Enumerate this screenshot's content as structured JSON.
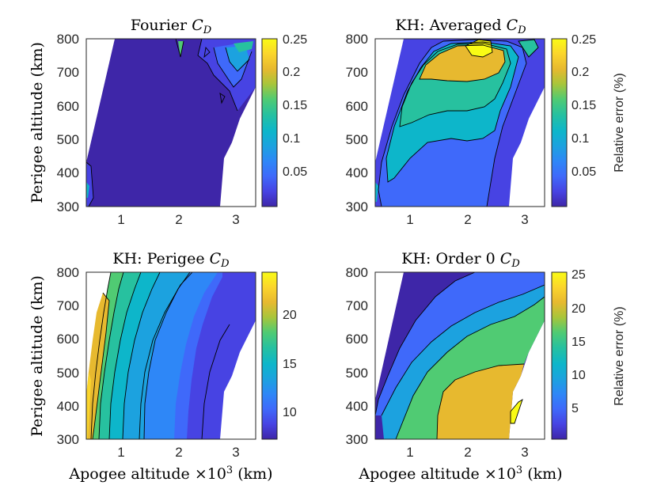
{
  "chart_data": [
    {
      "type": "contour",
      "title": "Fourier",
      "title_symbol": "C",
      "title_subscript": "D",
      "xlabel": "",
      "ylabel": "Perigee altitude (km)",
      "colorbar_label": "",
      "xlim": [
        0.4,
        3.35
      ],
      "ylim": [
        300,
        800
      ],
      "xticks": [
        "1",
        "2",
        "3"
      ],
      "yticks": [
        "300",
        "400",
        "500",
        "600",
        "700",
        "800"
      ],
      "colorbar_range": [
        0,
        0.25
      ],
      "colorbar_ticks": [
        "0.05",
        "0.1",
        "0.15",
        "0.2",
        "0.25"
      ],
      "level_range_shown": [
        0,
        0.25
      ],
      "dominant_value": 0.0
    },
    {
      "type": "contour",
      "title": "KH: Averaged",
      "title_symbol": "C",
      "title_subscript": "D",
      "xlabel": "",
      "ylabel": "",
      "colorbar_label": "Relative error (%)",
      "xlim": [
        0.4,
        3.35
      ],
      "ylim": [
        300,
        800
      ],
      "xticks": [
        "1",
        "2",
        "3"
      ],
      "yticks": [
        "300",
        "400",
        "500",
        "600",
        "700",
        "800"
      ],
      "colorbar_range": [
        0,
        0.25
      ],
      "colorbar_ticks": [
        "0.05",
        "0.1",
        "0.15",
        "0.2",
        "0.25"
      ],
      "level_range_shown": [
        0,
        0.25
      ],
      "peak_value": 0.25
    },
    {
      "type": "contour",
      "title": "KH: Perigee",
      "title_symbol": "C",
      "title_subscript": "D",
      "xlabel": "Apogee altitude ×10",
      "xlabel_exponent": "3",
      "xlabel_unit": " (km)",
      "ylabel": "Perigee altitude (km)",
      "colorbar_label": "",
      "xlim": [
        0.4,
        3.35
      ],
      "ylim": [
        300,
        800
      ],
      "xticks": [
        "1",
        "2",
        "3"
      ],
      "yticks": [
        "300",
        "400",
        "500",
        "600",
        "700",
        "800"
      ],
      "colorbar_range": [
        7,
        24
      ],
      "colorbar_ticks": [
        "10",
        "15",
        "20"
      ],
      "level_range_shown": [
        7,
        24
      ]
    },
    {
      "type": "contour",
      "title": "KH: Order 0",
      "title_symbol": "C",
      "title_subscript": "D",
      "xlabel": "Apogee altitude ×10",
      "xlabel_exponent": "3",
      "xlabel_unit": " (km)",
      "ylabel": "",
      "colorbar_label": "Relative error (%)",
      "xlim": [
        0.4,
        3.35
      ],
      "ylim": [
        300,
        800
      ],
      "xticks": [
        "1",
        "2",
        "3"
      ],
      "yticks": [
        "300",
        "400",
        "500",
        "600",
        "700",
        "800"
      ],
      "colorbar_range": [
        0,
        25
      ],
      "colorbar_ticks": [
        "5",
        "10",
        "15",
        "20",
        "25"
      ],
      "level_range_shown": [
        0,
        25
      ]
    }
  ],
  "colormap": [
    "#3e26a8",
    "#4743e3",
    "#3f69fa",
    "#2e87f7",
    "#1ca2df",
    "#0db6ca",
    "#27c19f",
    "#50cb73",
    "#a8c53a",
    "#e7b92f",
    "#fbd52c",
    "#f9fb15"
  ]
}
